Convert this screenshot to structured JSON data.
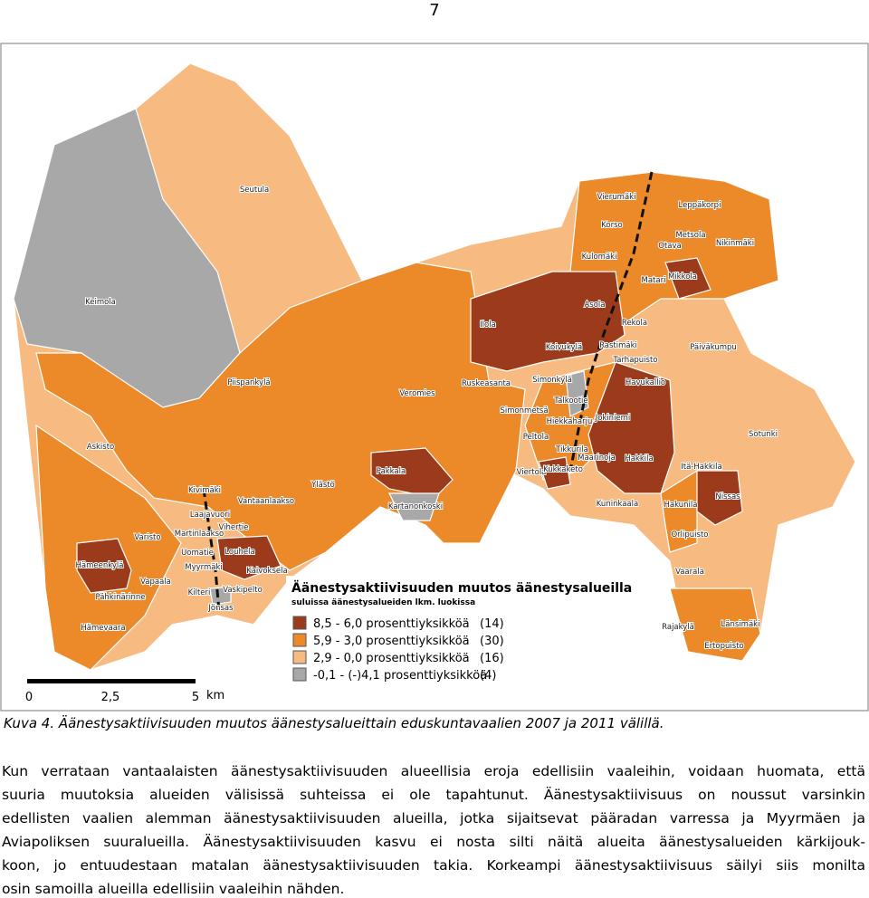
{
  "page_number": "7",
  "map": {
    "regions": [
      "Seutula",
      "Keimola",
      "Piispankylä",
      "Askisto",
      "Veromies",
      "Ilola",
      "Ruskeasanta",
      "Simonkylä",
      "Vierumäki",
      "Leppäkorpi",
      "Korso",
      "Metsola",
      "Nikinmäki",
      "Kulomäki",
      "Otava",
      "Matari",
      "Mikkola",
      "Asola",
      "Rekola",
      "Päiväkumpu",
      "Koivukylä",
      "Rastimäki",
      "Tarhapuisto",
      "Havukallio",
      "Talkootie",
      "Simonmetsä",
      "Hiekkaharju",
      "Jokiniemi",
      "Sotunki",
      "Peltola",
      "Tikkurila",
      "Maarinoja",
      "Hakkila",
      "Itä-Hakkila",
      "Viertola",
      "Kukkaketo",
      "Pakkala",
      "Ylästö",
      "Kivimäki",
      "Vantaanlaakso",
      "Kartanonkoski",
      "Laajavuori",
      "Kuninkaala",
      "Hakunila",
      "Nissas",
      "Varisto",
      "Vihertie",
      "Martinlaakso",
      "Hämeenkylä",
      "Uomatie",
      "Louhela",
      "Myyrmäki",
      "Kaivoksela",
      "Vapaala",
      "Orlipuisto",
      "Kilteri",
      "Vaskipelto",
      "Pähkinärinne",
      "Vaarala",
      "Jönsas",
      "Rajakylä",
      "Länsimäki",
      "Hämevaara",
      "Ertopuisto"
    ],
    "legend": {
      "title": "Äänestysaktiivisuuden muutos äänestysalueilla",
      "subtitle": "suluissa äänestysalueiden lkm. luokissa",
      "items": [
        {
          "label": "8,5 - 6,0 prosenttiyksikköä",
          "count": "(14)",
          "color": "#9c3a1c"
        },
        {
          "label": "5,9 - 3,0 prosenttiyksikköä",
          "count": "(30)",
          "color": "#ec8a2a"
        },
        {
          "label": "2,9 - 0,0 prosenttiyksikköä",
          "count": "(16)",
          "color": "#f7bb82"
        },
        {
          "label": "-0,1 - (-)4,1 prosenttiyksikköä",
          "count": "(4)",
          "color": "#a8a8a8"
        }
      ]
    },
    "scale": {
      "labels": [
        "0",
        "2,5",
        "5"
      ],
      "unit": "km"
    }
  },
  "caption": "Kuva 4. Äänestysaktiivisuuden muutos äänestysalueittain eduskuntavaalien 2007 ja 2011 välillä.",
  "paragraph": {
    "lines": [
      "Kun verrataan vantaalaisten äänestysaktiivisuuden alueellisia eroja edellisiin vaaleihin, voidaan huomata, että",
      "suuria muutoksia alueiden välisissä suhteissa ei ole tapahtunut. Äänestysaktiivisuus on noussut varsinkin",
      "edellisten vaalien alemman äänestysaktiivisuuden alueilla, jotka sijaitsevat pääradan varressa ja Myyrmäen ja",
      "Aviapoliksen suuralueilla. Äänestysaktiivisuuden kasvu ei nosta silti näitä alueita äänestysalueiden kärkijouk-",
      "koon, jo entuudestaan matalan äänestysaktiivisuuden takia. Korkeampi äänestysaktiivisuus säilyi siis monilta",
      "osin samoilla alueilla edellisiin vaaleihin nähden."
    ]
  }
}
